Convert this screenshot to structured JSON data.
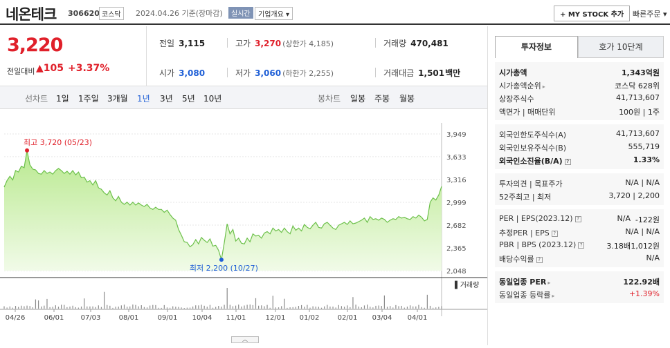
{
  "header": {
    "stock_name": "네온테크",
    "stock_code": "306620",
    "market": "코스닥",
    "date_text": "2024.04.26  기준(장마감)",
    "realtime_label": "실시간",
    "overview_label": "기업개요 ▾",
    "mystock_label": "+ MY STOCK 추가",
    "quick_order_label": "빠른주문 ▾"
  },
  "price": {
    "current": "3,220",
    "change_label": "전일대비",
    "change": "▲105",
    "change_pct": "+3.37%"
  },
  "stats": {
    "prev_label": "전일",
    "prev": "3,115",
    "high_label": "고가",
    "high": "3,270",
    "upper_limit": "(상한가 4,185)",
    "volume_label": "거래량",
    "volume": "470,481",
    "open_label": "시가",
    "open": "3,080",
    "low_label": "저가",
    "low": "3,060",
    "lower_limit": "(하한가 2,255)",
    "amount_label": "거래대금",
    "amount": "1,501",
    "amount_unit": "백만"
  },
  "periods": {
    "line_label": "선차트",
    "line_items": [
      "1일",
      "1주일",
      "3개월",
      "1년",
      "3년",
      "5년",
      "10년"
    ],
    "active": "1년",
    "candle_label": "봉차트",
    "candle_items": [
      "일봉",
      "주봉",
      "월봉"
    ]
  },
  "chart_data": {
    "type": "area",
    "title": "",
    "x_ticks": [
      "04/26",
      "06/01",
      "07/03",
      "08/01",
      "09/01",
      "10/04",
      "11/01",
      "12/01",
      "01/02",
      "02/01",
      "03/04",
      "04/01"
    ],
    "y_ticks": [
      3949,
      3633,
      3316,
      2999,
      2682,
      2365,
      2048
    ],
    "ylim": [
      2048,
      3949
    ],
    "high_annotation": "최고 3,720 (05/23)",
    "low_annotation": "최저 2,200 (10/27)",
    "volume_label": "거래량",
    "series": [
      {
        "values": [
          3210,
          3300,
          3360,
          3310,
          3440,
          3420,
          3500,
          3480,
          3720,
          3520,
          3460,
          3450,
          3400,
          3390,
          3440,
          3400,
          3420,
          3390,
          3440,
          3470,
          3440,
          3400,
          3430,
          3390,
          3440,
          3380,
          3420,
          3340,
          3350,
          3280,
          3300,
          3240,
          3300,
          3200,
          3180,
          3130,
          3100,
          3160,
          3060,
          3020,
          3080,
          3000,
          2970,
          3000,
          2960,
          3000,
          2960,
          2990,
          2960,
          2940,
          2970,
          2920,
          2900,
          2930,
          2900,
          2900,
          2860,
          2890,
          2830,
          2780,
          2750,
          2620,
          2540,
          2450,
          2440,
          2380,
          2410,
          2480,
          2420,
          2510,
          2470,
          2440,
          2490,
          2390,
          2400,
          2330,
          2200,
          2440,
          2700,
          2560,
          2620,
          2460,
          2500,
          2430,
          2420,
          2500,
          2450,
          2560,
          2530,
          2540,
          2500,
          2570,
          2590,
          2560,
          2640,
          2600,
          2620,
          2580,
          2640,
          2590,
          2560,
          2670,
          2610,
          2640,
          2600,
          2690,
          2650,
          2630,
          2680,
          2720,
          2650,
          2640,
          2700,
          2720,
          2680,
          2640,
          2620,
          2680,
          2700,
          2720,
          2690,
          2740,
          2700,
          2710,
          2730,
          2750,
          2780,
          2720,
          2800,
          2760,
          2770,
          2750,
          2780,
          2760,
          2720,
          2750,
          2770,
          2760,
          2800,
          2780,
          2790,
          2770,
          2760,
          2800,
          2780,
          2820,
          2790,
          2740,
          2760,
          3000,
          3060,
          3030,
          3100,
          3220
        ]
      }
    ]
  },
  "panel": {
    "tab_active": "투자정보",
    "tab_other": "호가 10단계",
    "g1": {
      "cap_label": "시가총액",
      "cap": "1,343억원",
      "rank_label": "시가총액순위",
      "rank": "코스닥 628위",
      "shares_label": "상장주식수",
      "shares": "41,713,607",
      "par_label": "액면가 | 매매단위",
      "par": "100원 | 1주"
    },
    "g2": {
      "f_limit_label": "외국인한도주식수(A)",
      "f_limit": "41,713,607",
      "f_hold_label": "외국인보유주식수(B)",
      "f_hold": "555,719",
      "f_rate_label": "외국인소진율(B/A)",
      "f_rate": "1.33%"
    },
    "g3": {
      "opinion_label": "투자의견 | 목표주가",
      "opinion": "N/A | N/A",
      "w52_label": "52주최고 | 최저",
      "w52": "3,720 | 2,200"
    },
    "g4": {
      "per_label": "PER | EPS(2023.12)",
      "per": "N/A",
      "eps": "-122원",
      "est_label": "추정PER | EPS",
      "est": "N/A | N/A",
      "pbr_label": "PBR | BPS (2023.12)",
      "pbr": "3.18배",
      "bps": "1,012원",
      "div_label": "배당수익률",
      "div": "N/A"
    },
    "g5": {
      "ind_per_label": "동일업종 PER",
      "ind_per": "122.92배",
      "ind_chg_label": "동일업종 등락률",
      "ind_chg": "+1.39%"
    }
  }
}
